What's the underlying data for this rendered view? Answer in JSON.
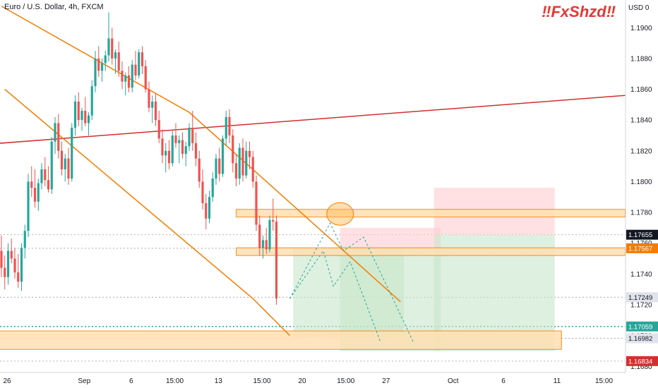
{
  "header": {
    "symbol": "Euro / U.S. Dollar, 4h, FXCM",
    "currency": "USD",
    "currency_extra": "0"
  },
  "watermark": "‼FxShzd‼",
  "colors": {
    "up": "#26a69a",
    "down": "#ef5350",
    "channel": "#f57c00",
    "trendline": "#d32f2f",
    "zone_fill": "#ffe0b2",
    "tp_fill": "#c8e6c9",
    "sl_fill": "#ffcdd2"
  },
  "chart_data": {
    "type": "candlestick",
    "title": "",
    "xlabel": "",
    "ylabel": "",
    "ylim": [
      1.1676,
      1.1918
    ],
    "y_ticks": [
      1.19,
      1.188,
      1.186,
      1.184,
      1.182,
      1.18,
      1.178,
      1.176,
      1.174,
      1.172,
      1.17,
      1.168
    ],
    "x_ticks": [
      "26",
      "Sep",
      "6",
      "15:00",
      "13",
      "15:00",
      "20",
      "15:00",
      "27",
      "Oct",
      "6",
      "11",
      "15:00"
    ],
    "price_tags": [
      {
        "label": "1.17655",
        "value": 1.17655,
        "style": "dark"
      },
      {
        "label": "1.17567",
        "value": 1.17567,
        "style": "orange"
      },
      {
        "label": "1.17249",
        "value": 1.17249,
        "style": "gray"
      },
      {
        "label": "1.17059",
        "value": 1.17059,
        "style": "teal"
      },
      {
        "label": "1.16982",
        "value": 1.16982,
        "style": "gray"
      },
      {
        "label": "1.16834",
        "value": 1.16834,
        "style": "red"
      }
    ],
    "candles_ohlc": [
      [
        1.1755,
        1.1765,
        1.1738,
        1.1744
      ],
      [
        1.1744,
        1.1752,
        1.173,
        1.1738
      ],
      [
        1.1738,
        1.176,
        1.1733,
        1.1755
      ],
      [
        1.1755,
        1.1763,
        1.1747,
        1.175
      ],
      [
        1.175,
        1.1757,
        1.1737,
        1.1741
      ],
      [
        1.1741,
        1.1753,
        1.1731,
        1.1735
      ],
      [
        1.1735,
        1.176,
        1.1729,
        1.1757
      ],
      [
        1.1757,
        1.1772,
        1.175,
        1.1768
      ],
      [
        1.1768,
        1.1805,
        1.1764,
        1.18
      ],
      [
        1.18,
        1.181,
        1.179,
        1.1796
      ],
      [
        1.1796,
        1.1808,
        1.1783,
        1.1787
      ],
      [
        1.1787,
        1.1802,
        1.1781,
        1.1799
      ],
      [
        1.1799,
        1.1812,
        1.1795,
        1.1808
      ],
      [
        1.1808,
        1.1816,
        1.1797,
        1.1801
      ],
      [
        1.1801,
        1.181,
        1.1793,
        1.1795
      ],
      [
        1.1795,
        1.1829,
        1.1792,
        1.1826
      ],
      [
        1.1826,
        1.1842,
        1.1818,
        1.1838
      ],
      [
        1.1838,
        1.1844,
        1.1815,
        1.182
      ],
      [
        1.182,
        1.1826,
        1.1804,
        1.1808
      ],
      [
        1.1808,
        1.1818,
        1.18,
        1.1815
      ],
      [
        1.1815,
        1.1822,
        1.1798,
        1.1802
      ],
      [
        1.1802,
        1.1838,
        1.18,
        1.1835
      ],
      [
        1.1835,
        1.1856,
        1.183,
        1.1852
      ],
      [
        1.1852,
        1.1858,
        1.1836,
        1.184
      ],
      [
        1.184,
        1.1848,
        1.1833,
        1.1846
      ],
      [
        1.1846,
        1.1855,
        1.1836,
        1.1838
      ],
      [
        1.1838,
        1.1845,
        1.183,
        1.1843
      ],
      [
        1.1843,
        1.1866,
        1.184,
        1.1862
      ],
      [
        1.1862,
        1.1885,
        1.1858,
        1.188
      ],
      [
        1.188,
        1.1888,
        1.1868,
        1.1872
      ],
      [
        1.1872,
        1.188,
        1.1865,
        1.1877
      ],
      [
        1.1877,
        1.1885,
        1.1872,
        1.1882
      ],
      [
        1.1882,
        1.191,
        1.1878,
        1.1893
      ],
      [
        1.1893,
        1.19,
        1.1876,
        1.188
      ],
      [
        1.188,
        1.1886,
        1.187,
        1.1884
      ],
      [
        1.1884,
        1.1891,
        1.1868,
        1.1872
      ],
      [
        1.1872,
        1.1878,
        1.186,
        1.1865
      ],
      [
        1.1865,
        1.1871,
        1.1856,
        1.1869
      ],
      [
        1.1869,
        1.1875,
        1.1858,
        1.1861
      ],
      [
        1.1861,
        1.1879,
        1.1858,
        1.1876
      ],
      [
        1.1876,
        1.1885,
        1.1866,
        1.1869
      ],
      [
        1.1869,
        1.1886,
        1.1867,
        1.1884
      ],
      [
        1.1884,
        1.1888,
        1.187,
        1.1875
      ],
      [
        1.1875,
        1.1879,
        1.1858,
        1.186
      ],
      [
        1.186,
        1.1865,
        1.1845,
        1.1848
      ],
      [
        1.1848,
        1.1856,
        1.1838,
        1.1852
      ],
      [
        1.1852,
        1.1857,
        1.1836,
        1.184
      ],
      [
        1.184,
        1.1846,
        1.1825,
        1.1828
      ],
      [
        1.1828,
        1.1834,
        1.1812,
        1.1817
      ],
      [
        1.1817,
        1.1825,
        1.1806,
        1.182
      ],
      [
        1.182,
        1.1827,
        1.1808,
        1.1812
      ],
      [
        1.1812,
        1.1833,
        1.181,
        1.183
      ],
      [
        1.183,
        1.1838,
        1.1822,
        1.1825
      ],
      [
        1.1825,
        1.183,
        1.1812,
        1.1827
      ],
      [
        1.1827,
        1.1832,
        1.1815,
        1.1818
      ],
      [
        1.1818,
        1.1826,
        1.181,
        1.1823
      ],
      [
        1.1823,
        1.1838,
        1.182,
        1.1835
      ],
      [
        1.1835,
        1.1846,
        1.182,
        1.1825
      ],
      [
        1.1825,
        1.1832,
        1.181,
        1.1815
      ],
      [
        1.1815,
        1.182,
        1.1796,
        1.18
      ],
      [
        1.18,
        1.1808,
        1.1782,
        1.1786
      ],
      [
        1.1786,
        1.1792,
        1.1769,
        1.1776
      ],
      [
        1.1776,
        1.1794,
        1.1773,
        1.179
      ],
      [
        1.179,
        1.1806,
        1.1787,
        1.1802
      ],
      [
        1.1802,
        1.1818,
        1.1798,
        1.1815
      ],
      [
        1.1815,
        1.1822,
        1.18,
        1.1805
      ],
      [
        1.1805,
        1.183,
        1.1803,
        1.1828
      ],
      [
        1.1828,
        1.1846,
        1.1823,
        1.1842
      ],
      [
        1.1842,
        1.1847,
        1.1825,
        1.183
      ],
      [
        1.183,
        1.1834,
        1.1806,
        1.1812
      ],
      [
        1.1812,
        1.1818,
        1.1797,
        1.1802
      ],
      [
        1.1802,
        1.1825,
        1.1798,
        1.1822
      ],
      [
        1.1822,
        1.1828,
        1.18,
        1.1804
      ],
      [
        1.1804,
        1.1826,
        1.1802,
        1.182
      ],
      [
        1.182,
        1.1826,
        1.1808,
        1.1816
      ],
      [
        1.1816,
        1.182,
        1.1796,
        1.18
      ],
      [
        1.18,
        1.1804,
        1.1768,
        1.1772
      ],
      [
        1.1772,
        1.1778,
        1.1752,
        1.1757
      ],
      [
        1.1757,
        1.1765,
        1.175,
        1.1762
      ],
      [
        1.1762,
        1.177,
        1.1753,
        1.1756
      ],
      [
        1.1756,
        1.1778,
        1.1754,
        1.1775
      ],
      [
        1.1775,
        1.1789,
        1.1768,
        1.1774
      ],
      [
        1.1774,
        1.1778,
        1.172,
        1.1724
      ]
    ],
    "channel_upper": [
      [
        0,
        1.1914
      ],
      [
        56,
        1.1845
      ],
      [
        119,
        1.1722
      ]
    ],
    "channel_lower": [
      [
        1,
        1.186
      ],
      [
        75,
        1.1724
      ],
      [
        86,
        1.17
      ]
    ],
    "trendline": [
      [
        -30,
        1.182
      ],
      [
        186,
        1.1856
      ]
    ],
    "zones": [
      {
        "name": "resistance",
        "x0": 70,
        "x1": 186,
        "y0": 1.1777,
        "y1": 1.1782
      },
      {
        "name": "mid",
        "x0": 70,
        "x1": 186,
        "y0": 1.1752,
        "y1": 1.1757
      },
      {
        "name": "support",
        "x0": -30,
        "x1": 167,
        "y0": 1.1691,
        "y1": 1.1703
      }
    ],
    "positions": [
      {
        "x0": 87,
        "x1": 120,
        "entry": 1.17567,
        "stop": 1.1756,
        "target": 1.1699
      },
      {
        "x0": 101,
        "x1": 131,
        "entry": 1.17567,
        "stop": 1.177,
        "target": 1.169
      },
      {
        "x0": 129,
        "x1": 165,
        "entry": 1.17655,
        "stop": 1.1796,
        "target": 1.169
      }
    ]
  }
}
